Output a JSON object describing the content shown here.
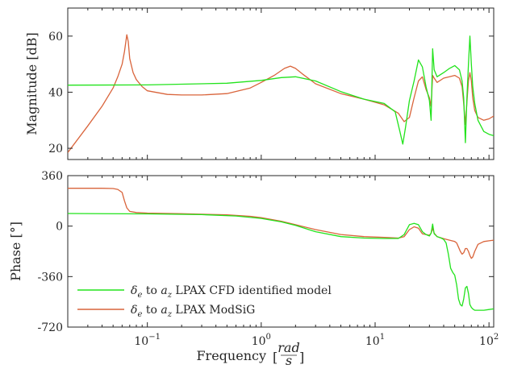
{
  "colors": {
    "identified": "#22e31c",
    "modsig": "#d9643b",
    "axis": "#262626"
  },
  "chart_data": [
    {
      "type": "line",
      "panel": "top",
      "xscale": "log",
      "xlim": [
        0.02,
        110
      ],
      "ylim": [
        16,
        70
      ],
      "yticks": [
        20,
        40,
        60
      ],
      "ytick_labels": [
        "20",
        "40",
        "60"
      ],
      "ylabel": "Magnitude [dB]",
      "grid": false,
      "series": [
        {
          "key": "identified",
          "x": [
            0.02,
            0.1,
            0.5,
            1,
            1.5,
            2,
            3,
            5,
            8,
            12,
            15,
            16.5,
            17.5,
            18.5,
            20,
            22,
            24,
            26,
            28,
            30,
            31,
            32,
            33,
            35,
            40,
            45,
            50,
            55,
            58,
            60,
            62,
            64,
            66,
            68,
            70,
            72,
            75,
            80,
            90,
            100,
            110
          ],
          "y": [
            42.5,
            42.6,
            43.2,
            44.2,
            45.2,
            45.5,
            44.0,
            40.2,
            37.5,
            36.0,
            33.0,
            26.0,
            21.5,
            27.5,
            37.0,
            44.0,
            51.5,
            49.0,
            42.0,
            37.0,
            30.0,
            55.5,
            48.0,
            45.5,
            47.0,
            48.5,
            49.5,
            48.0,
            44.0,
            38.0,
            22.0,
            38.0,
            50.0,
            60.0,
            50.0,
            42.0,
            36.0,
            30.0,
            26.0,
            25.0,
            24.5
          ]
        },
        {
          "key": "modsig",
          "x": [
            0.02,
            0.03,
            0.04,
            0.05,
            0.055,
            0.06,
            0.063,
            0.066,
            0.068,
            0.07,
            0.075,
            0.08,
            0.09,
            0.1,
            0.15,
            0.2,
            0.3,
            0.5,
            0.8,
            1,
            1.3,
            1.6,
            1.8,
            2.0,
            2.3,
            3,
            5,
            8,
            12,
            16,
            18,
            20,
            22,
            24,
            26,
            28,
            30,
            31,
            32,
            33,
            35,
            40,
            45,
            50,
            55,
            58,
            60,
            62,
            64,
            66,
            68,
            70,
            72,
            75,
            80,
            90,
            100,
            110
          ],
          "y": [
            18.5,
            28.0,
            35.0,
            41.5,
            45.5,
            50.0,
            54.5,
            60.5,
            58.0,
            52.0,
            47.0,
            44.5,
            42.0,
            40.5,
            39.2,
            39.0,
            39.0,
            39.5,
            41.5,
            43.5,
            46.0,
            48.5,
            49.3,
            48.5,
            46.5,
            43.0,
            39.5,
            37.5,
            35.5,
            32.5,
            29.5,
            31.0,
            38.0,
            44.0,
            45.5,
            41.0,
            38.0,
            35.0,
            46.0,
            45.0,
            43.5,
            45.0,
            45.5,
            46.0,
            45.0,
            42.0,
            36.0,
            28.5,
            36.5,
            44.0,
            47.0,
            44.0,
            38.0,
            33.5,
            31.0,
            30.0,
            30.5,
            31.5
          ]
        }
      ]
    },
    {
      "type": "line",
      "panel": "bottom",
      "xscale": "log",
      "xlim": [
        0.02,
        110
      ],
      "ylim": [
        -720,
        360
      ],
      "yticks": [
        360,
        0,
        -360,
        -720
      ],
      "ytick_labels": [
        "360",
        "0",
        "-360",
        "-720"
      ],
      "xticks": [
        0.1,
        1,
        10,
        100
      ],
      "xtick_labels": [
        {
          "base": "10",
          "exp": "−1"
        },
        {
          "base": "10",
          "exp": "0"
        },
        {
          "base": "10",
          "exp": "1"
        },
        {
          "base": "10",
          "exp": "2"
        }
      ],
      "ylabel": "Phase [°]",
      "xlabel": {
        "prefix": "Frequency",
        "numerator": "rad",
        "denominator": "s"
      },
      "grid": false,
      "legend": {
        "placement": "bottom-left",
        "entries": [
          {
            "key": "identified",
            "symbol": "δ",
            "sub1": "e",
            "middle": "to",
            "symbol2": "a",
            "sub2": "z",
            "text": "LPAX CFD identified model"
          },
          {
            "key": "modsig",
            "symbol": "δ",
            "sub1": "e",
            "middle": "to",
            "symbol2": "a",
            "sub2": "z",
            "text": "LPAX ModSiG"
          }
        ]
      },
      "series": [
        {
          "key": "identified",
          "x": [
            0.02,
            0.1,
            0.3,
            0.6,
            1,
            1.5,
            2,
            3,
            5,
            8,
            12,
            16,
            18,
            20,
            22,
            24,
            26,
            28,
            30,
            31,
            32,
            33,
            35,
            38,
            40,
            42,
            44,
            46,
            48,
            50,
            52,
            54,
            56,
            58,
            60,
            62,
            64,
            66,
            68,
            70,
            72,
            75,
            80,
            90,
            100,
            110
          ],
          "y": [
            90,
            87,
            82,
            72,
            55,
            30,
            5,
            -40,
            -75,
            -85,
            -88,
            -88,
            -60,
            10,
            20,
            10,
            -40,
            -60,
            -70,
            -50,
            15,
            -55,
            -75,
            -85,
            -95,
            -120,
            -200,
            -300,
            -330,
            -350,
            -420,
            -520,
            -560,
            -570,
            -520,
            -440,
            -430,
            -480,
            -560,
            -580,
            -590,
            -600,
            -600,
            -600,
            -595,
            -590
          ]
        },
        {
          "key": "modsig",
          "x": [
            0.02,
            0.04,
            0.05,
            0.055,
            0.06,
            0.063,
            0.066,
            0.07,
            0.08,
            0.1,
            0.2,
            0.5,
            0.8,
            1,
            1.5,
            2,
            3,
            5,
            8,
            12,
            16,
            18,
            20,
            22,
            24,
            26,
            28,
            30,
            31,
            32,
            33,
            35,
            40,
            45,
            50,
            52,
            54,
            56,
            58,
            60,
            62,
            64,
            66,
            68,
            70,
            72,
            75,
            80,
            90,
            100,
            110
          ],
          "y": [
            270,
            270,
            268,
            262,
            240,
            180,
            130,
            105,
            97,
            93,
            88,
            80,
            70,
            60,
            35,
            10,
            -25,
            -60,
            -75,
            -80,
            -85,
            -75,
            -25,
            -5,
            -15,
            -55,
            -60,
            -65,
            -50,
            -15,
            -50,
            -75,
            -90,
            -100,
            -110,
            -120,
            -150,
            -180,
            -200,
            -190,
            -160,
            -160,
            -180,
            -210,
            -230,
            -220,
            -180,
            -130,
            -110,
            -105,
            -100
          ]
        }
      ]
    }
  ]
}
